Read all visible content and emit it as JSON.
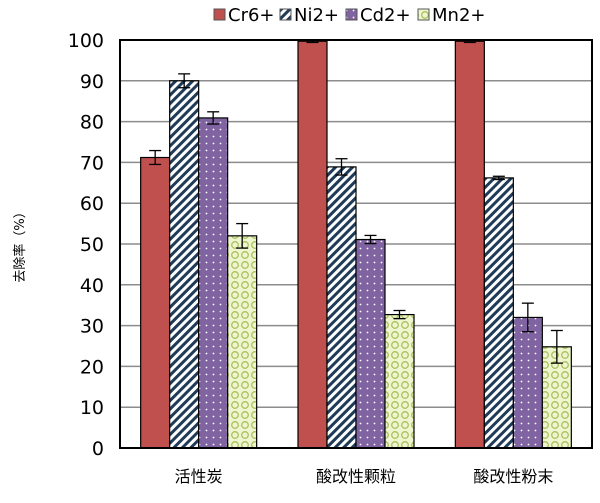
{
  "chart_data": {
    "type": "bar",
    "title": "",
    "xlabel": "",
    "ylabel": "去除率（%）",
    "ylim": [
      0,
      100
    ],
    "yticks": [
      "0",
      "10",
      "20",
      "30",
      "40",
      "50",
      "60",
      "70",
      "80",
      "90",
      "100"
    ],
    "grid": true,
    "legend_position": "top-right",
    "categories": [
      "活性炭",
      "酸改性颗粒",
      "酸改性粉末"
    ],
    "series": [
      {
        "name": "Cr6+",
        "color": "#c0504d",
        "pattern": "solid",
        "values": [
          71.2,
          99.7,
          99.7
        ],
        "errors": [
          1.7,
          0.3,
          0.3
        ]
      },
      {
        "name": "Ni2+",
        "color": "#1f3b57",
        "pattern": "diagonal-stripes",
        "values": [
          90.0,
          68.9,
          66.2
        ],
        "errors": [
          1.7,
          2.0,
          0.4
        ]
      },
      {
        "name": "Cd2+",
        "color": "#8064a2",
        "pattern": "dots",
        "values": [
          80.9,
          51.1,
          32.0
        ],
        "errors": [
          1.5,
          1.0,
          3.5
        ]
      },
      {
        "name": "Mn2+",
        "color": "#d7e4a4",
        "pattern": "circles",
        "values": [
          52.0,
          32.7,
          24.8
        ],
        "errors": [
          3.0,
          1.0,
          4.0
        ]
      }
    ]
  }
}
